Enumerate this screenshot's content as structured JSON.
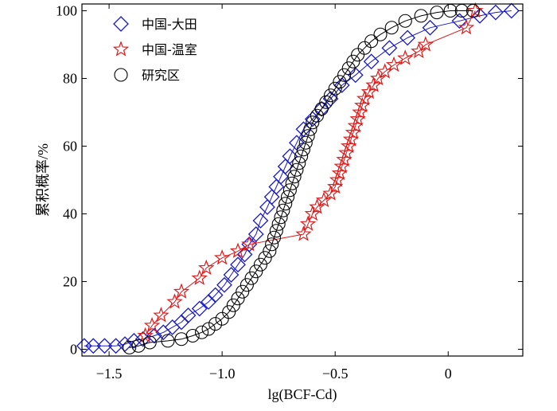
{
  "chart_data": {
    "type": "line",
    "title": "",
    "xlabel": "lg(BCF-Cd)",
    "ylabel": "累积概率/%",
    "xlim": [
      -1.62,
      0.33
    ],
    "ylim": [
      -2,
      102
    ],
    "xticks": [
      {
        "value": -1.5,
        "label": "−1.5"
      },
      {
        "value": -1.0,
        "label": "−1.0"
      },
      {
        "value": -0.5,
        "label": "−0.5"
      },
      {
        "value": 0,
        "label": "0"
      }
    ],
    "yticks": [
      {
        "value": 0,
        "label": "0"
      },
      {
        "value": 20,
        "label": "20"
      },
      {
        "value": 40,
        "label": "40"
      },
      {
        "value": 60,
        "label": "60"
      },
      {
        "value": 80,
        "label": "80"
      },
      {
        "value": 100,
        "label": "100"
      }
    ],
    "legend_position": "top-left",
    "series": [
      {
        "name": "中国-大田",
        "marker": "diamond",
        "color": "#1a1acc",
        "points": [
          [
            -1.61,
            1
          ],
          [
            -1.57,
            1
          ],
          [
            -1.52,
            1
          ],
          [
            -1.47,
            1
          ],
          [
            -1.43,
            1.5
          ],
          [
            -1.39,
            2.5
          ],
          [
            -1.35,
            3
          ],
          [
            -1.3,
            4
          ],
          [
            -1.26,
            5
          ],
          [
            -1.22,
            6.5
          ],
          [
            -1.18,
            8
          ],
          [
            -1.15,
            10
          ],
          [
            -1.1,
            12
          ],
          [
            -1.06,
            14
          ],
          [
            -1.03,
            16
          ],
          [
            -0.99,
            19
          ],
          [
            -0.96,
            22
          ],
          [
            -0.93,
            25
          ],
          [
            -0.9,
            28
          ],
          [
            -0.88,
            31
          ],
          [
            -0.85,
            34
          ],
          [
            -0.83,
            38
          ],
          [
            -0.8,
            42
          ],
          [
            -0.78,
            45
          ],
          [
            -0.76,
            48
          ],
          [
            -0.74,
            51
          ],
          [
            -0.72,
            54
          ],
          [
            -0.7,
            57
          ],
          [
            -0.67,
            61
          ],
          [
            -0.64,
            65
          ],
          [
            -0.6,
            68
          ],
          [
            -0.56,
            71
          ],
          [
            -0.52,
            74
          ],
          [
            -0.47,
            78
          ],
          [
            -0.41,
            81
          ],
          [
            -0.34,
            85
          ],
          [
            -0.26,
            89
          ],
          [
            -0.18,
            92
          ],
          [
            -0.08,
            95
          ],
          [
            0.05,
            97
          ],
          [
            0.14,
            98.5
          ],
          [
            0.21,
            99.5
          ],
          [
            0.28,
            100
          ]
        ]
      },
      {
        "name": "中国-温室",
        "marker": "star",
        "color": "#e01919",
        "points": [
          [
            -1.34,
            4
          ],
          [
            -1.31,
            7
          ],
          [
            -1.27,
            10
          ],
          [
            -1.21,
            14
          ],
          [
            -1.18,
            17
          ],
          [
            -1.1,
            21
          ],
          [
            -1.07,
            24
          ],
          [
            -1.0,
            27
          ],
          [
            -0.93,
            29
          ],
          [
            -0.88,
            31
          ],
          [
            -0.64,
            34
          ],
          [
            -0.62,
            37
          ],
          [
            -0.6,
            40
          ],
          [
            -0.58,
            42
          ],
          [
            -0.55,
            44
          ],
          [
            -0.52,
            46
          ],
          [
            -0.5,
            48
          ],
          [
            -0.49,
            50
          ],
          [
            -0.48,
            52
          ],
          [
            -0.47,
            54
          ],
          [
            -0.46,
            56
          ],
          [
            -0.45,
            58
          ],
          [
            -0.44,
            60
          ],
          [
            -0.43,
            62
          ],
          [
            -0.42,
            64
          ],
          [
            -0.41,
            66
          ],
          [
            -0.4,
            68
          ],
          [
            -0.39,
            70
          ],
          [
            -0.38,
            72
          ],
          [
            -0.37,
            74
          ],
          [
            -0.35,
            76
          ],
          [
            -0.33,
            78
          ],
          [
            -0.31,
            80
          ],
          [
            -0.28,
            82
          ],
          [
            -0.24,
            84
          ],
          [
            -0.19,
            86
          ],
          [
            -0.13,
            88
          ],
          [
            -0.1,
            90
          ],
          [
            0.08,
            95
          ],
          [
            0.12,
            100
          ]
        ]
      },
      {
        "name": "研究区",
        "marker": "circle",
        "color": "#000000",
        "points": [
          [
            -1.41,
            0.5
          ],
          [
            -1.37,
            1
          ],
          [
            -1.32,
            2
          ],
          [
            -1.24,
            2.5
          ],
          [
            -1.18,
            3
          ],
          [
            -1.13,
            4
          ],
          [
            -1.09,
            5
          ],
          [
            -1.06,
            6
          ],
          [
            -1.03,
            7.5
          ],
          [
            -1.0,
            9
          ],
          [
            -0.97,
            11
          ],
          [
            -0.95,
            13
          ],
          [
            -0.93,
            15
          ],
          [
            -0.91,
            17
          ],
          [
            -0.89,
            19
          ],
          [
            -0.87,
            21
          ],
          [
            -0.85,
            23
          ],
          [
            -0.83,
            25
          ],
          [
            -0.81,
            27
          ],
          [
            -0.79,
            29
          ],
          [
            -0.78,
            31
          ],
          [
            -0.77,
            33
          ],
          [
            -0.76,
            35
          ],
          [
            -0.75,
            37
          ],
          [
            -0.74,
            39
          ],
          [
            -0.73,
            41
          ],
          [
            -0.72,
            43
          ],
          [
            -0.71,
            45
          ],
          [
            -0.7,
            47
          ],
          [
            -0.69,
            49
          ],
          [
            -0.68,
            51
          ],
          [
            -0.67,
            53
          ],
          [
            -0.66,
            55
          ],
          [
            -0.65,
            57
          ],
          [
            -0.64,
            59
          ],
          [
            -0.63,
            61
          ],
          [
            -0.62,
            63
          ],
          [
            -0.61,
            65
          ],
          [
            -0.6,
            67
          ],
          [
            -0.58,
            69
          ],
          [
            -0.56,
            71
          ],
          [
            -0.54,
            73
          ],
          [
            -0.52,
            75
          ],
          [
            -0.5,
            77
          ],
          [
            -0.48,
            79
          ],
          [
            -0.46,
            81
          ],
          [
            -0.44,
            83
          ],
          [
            -0.42,
            85
          ],
          [
            -0.4,
            87
          ],
          [
            -0.37,
            89
          ],
          [
            -0.34,
            91
          ],
          [
            -0.3,
            93
          ],
          [
            -0.25,
            95
          ],
          [
            -0.19,
            97
          ],
          [
            -0.12,
            98.5
          ],
          [
            -0.05,
            99.5
          ],
          [
            0.01,
            100
          ],
          [
            0.06,
            100
          ],
          [
            0.11,
            100
          ]
        ]
      }
    ]
  }
}
